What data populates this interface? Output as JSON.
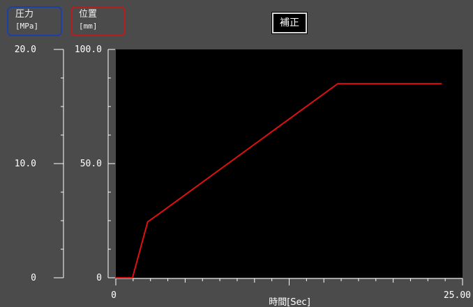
{
  "legend": {
    "pressure": {
      "label": "圧力",
      "unit": "[MPa]",
      "border_color": "#1f3fa8"
    },
    "position": {
      "label": "位置",
      "unit": "[mm]",
      "border_color": "#b51e1e"
    }
  },
  "toolbar": {
    "correction_label": "補正"
  },
  "chart_data": {
    "type": "line",
    "xlabel": "時間[Sec]",
    "xlim": [
      0,
      25.0
    ],
    "x_tick_labels": [
      {
        "value": 0,
        "label": "0"
      },
      {
        "value": 25.0,
        "label": "25.00"
      }
    ],
    "left_axis": {
      "name": "圧力",
      "unit": "[MPa]",
      "ylim": [
        0,
        20.0
      ],
      "tick_labels": [
        {
          "value": 0,
          "label": "0"
        },
        {
          "value": 10.0,
          "label": "10.0"
        },
        {
          "value": 20.0,
          "label": "20.0"
        }
      ]
    },
    "right_axis": {
      "name": "位置",
      "unit": "[mm]",
      "ylim": [
        0,
        100.0
      ],
      "tick_labels": [
        {
          "value": 0,
          "label": "0"
        },
        {
          "value": 50.0,
          "label": "50.0"
        },
        {
          "value": 100.0,
          "label": "100.0"
        }
      ]
    },
    "series": [
      {
        "axis": "position",
        "color": "#e01010",
        "x": [
          0,
          1.2,
          2.3,
          3.0,
          16.0,
          23.5
        ],
        "y": [
          0,
          0,
          24.5,
          27.5,
          85.0,
          85.0
        ]
      }
    ],
    "grid": false,
    "plot_background": "#000000"
  }
}
